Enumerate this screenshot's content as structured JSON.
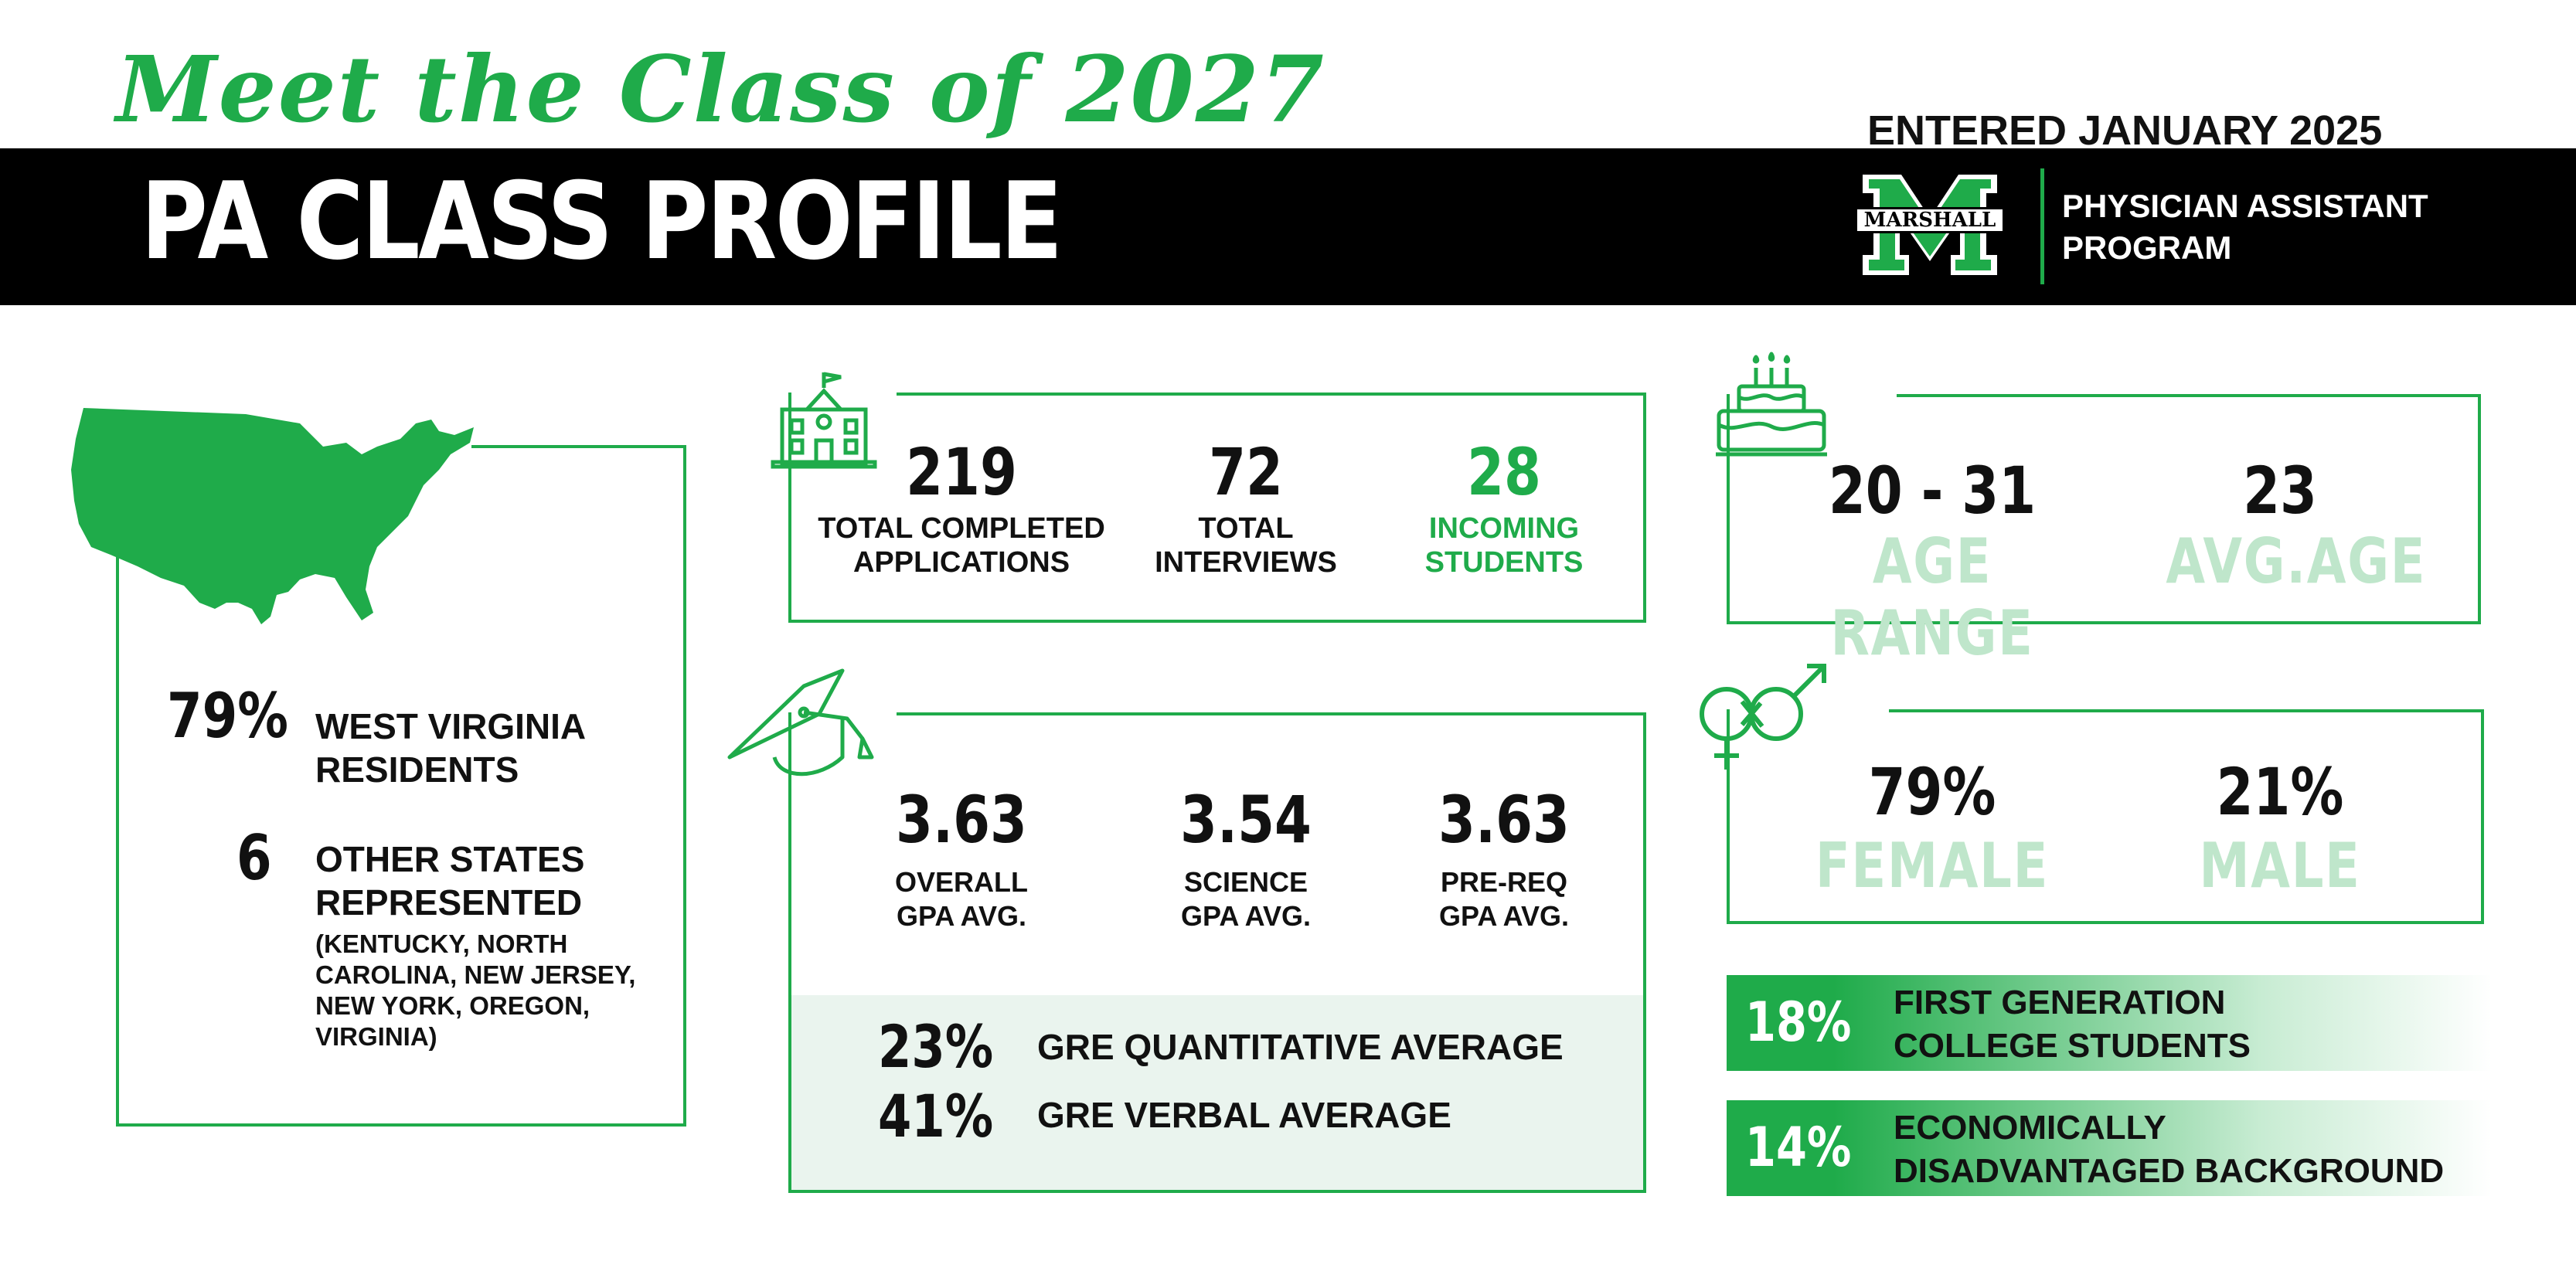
{
  "header": {
    "script_title": "Meet the Class of 2027",
    "band_title": "PA CLASS PROFILE",
    "entered": "ENTERED JANUARY 2025",
    "logo_text": "MARSHALL",
    "program_line1": "PHYSICIAN ASSISTANT",
    "program_line2": "PROGRAM"
  },
  "residency": {
    "wv_percent": "79%",
    "wv_label_line1": "WEST VIRGINIA",
    "wv_label_line2": "RESIDENTS",
    "other_count": "6",
    "other_label_line1": "OTHER STATES",
    "other_label_line2": "REPRESENTED",
    "states_line1": "(KENTUCKY, NORTH",
    "states_line2": "CAROLINA, NEW JERSEY,",
    "states_line3": "NEW YORK, OREGON,",
    "states_line4": "VIRGINIA)"
  },
  "applications": {
    "completed": "219",
    "completed_label_line1": "TOTAL COMPLETED",
    "completed_label_line2": "APPLICATIONS",
    "interviews": "72",
    "interviews_label_line1": "TOTAL",
    "interviews_label_line2": "INTERVIEWS",
    "incoming": "28",
    "incoming_label_line1": "INCOMING",
    "incoming_label_line2": "STUDENTS"
  },
  "gpa": {
    "overall": "3.63",
    "overall_label_line1": "OVERALL",
    "overall_label_line2": "GPA AVG.",
    "science": "3.54",
    "science_label_line1": "SCIENCE",
    "science_label_line2": "GPA AVG.",
    "prereq": "3.63",
    "prereq_label_line1": "PRE-REQ",
    "prereq_label_line2": "GPA AVG.",
    "gre_quant": "23%",
    "gre_quant_label": "GRE QUANTITATIVE AVERAGE",
    "gre_verbal": "41%",
    "gre_verbal_label": "GRE VERBAL AVERAGE"
  },
  "age": {
    "range": "20 - 31",
    "range_label": "AGE RANGE",
    "avg": "23",
    "avg_label": "AVG.AGE"
  },
  "gender": {
    "female": "79%",
    "female_label": "FEMALE",
    "male": "21%",
    "male_label": "MALE"
  },
  "first_gen": {
    "percent": "18%",
    "line1": "FIRST GENERATION",
    "line2": "COLLEGE STUDENTS"
  },
  "econ": {
    "percent": "14%",
    "line1": "ECONOMICALLY",
    "line2": "DISADVANTAGED BACKGROUND"
  },
  "colors": {
    "accent": "#1fab4a",
    "pale": "#bfe6cb",
    "panel": "#eaf4ee",
    "band": "#000000"
  },
  "icons": [
    "usa-map-icon",
    "school-icon",
    "graduation-cap-icon",
    "birthday-cake-icon",
    "gender-icon",
    "marshall-logo"
  ]
}
